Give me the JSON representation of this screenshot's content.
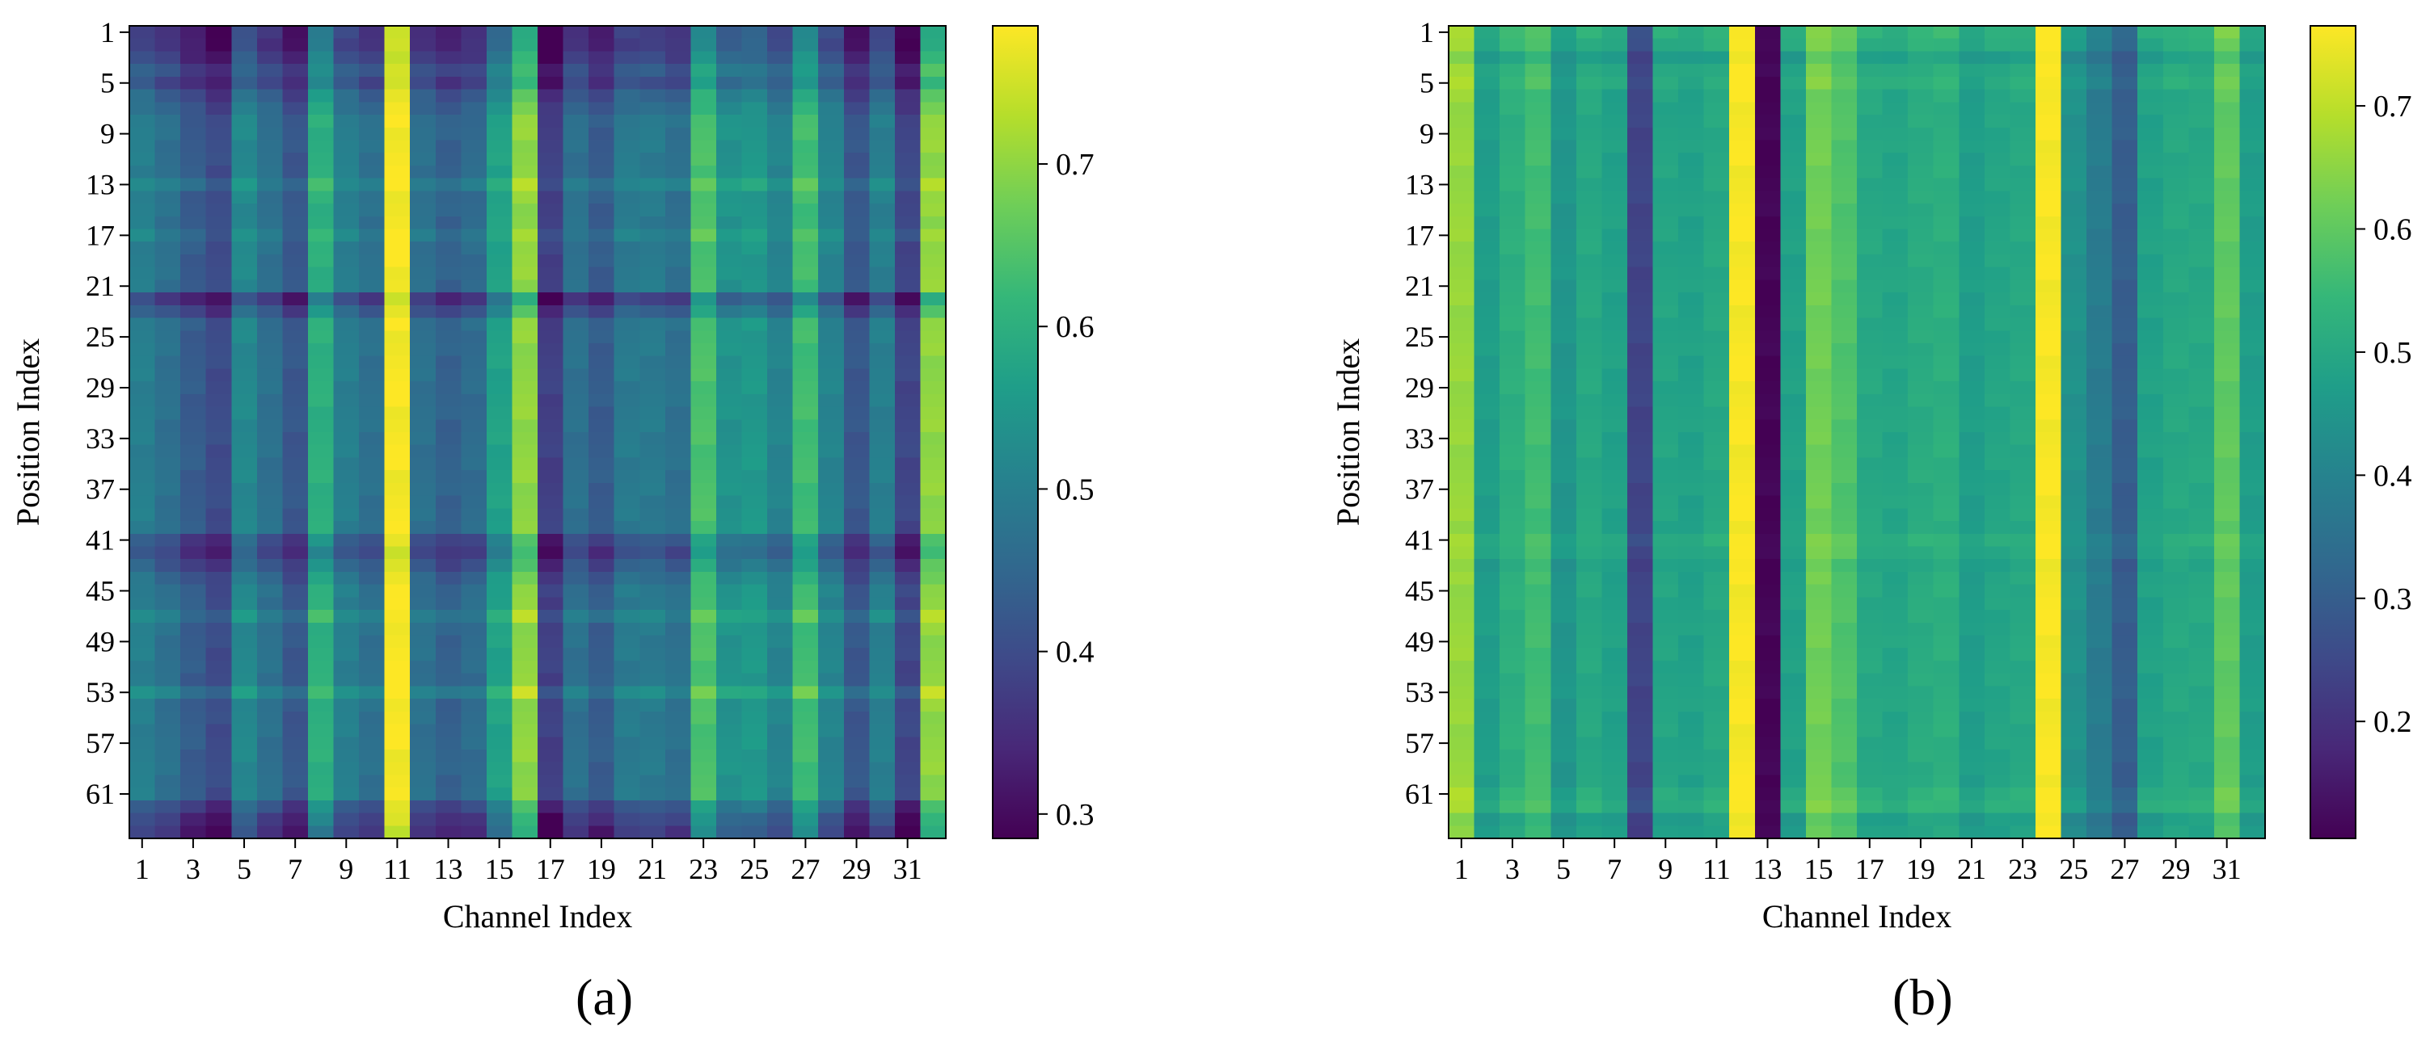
{
  "figure_labels": [
    "(a)",
    "(b)"
  ],
  "colormap": {
    "name": "viridis",
    "stops": [
      "#440154",
      "#482878",
      "#3e4a89",
      "#31688e",
      "#26828e",
      "#1f9e89",
      "#35b779",
      "#6ece58",
      "#b5de2b",
      "#fde725"
    ]
  },
  "chart_data": [
    {
      "type": "heatmap",
      "panel": "(a)",
      "title": "",
      "xlabel": "Channel Index",
      "ylabel": "Position Index",
      "x_tick_labels": [
        "1",
        "3",
        "5",
        "7",
        "9",
        "11",
        "13",
        "15",
        "17",
        "19",
        "21",
        "23",
        "25",
        "27",
        "29",
        "31"
      ],
      "y_tick_labels": [
        "1",
        "5",
        "9",
        "13",
        "17",
        "21",
        "25",
        "29",
        "33",
        "37",
        "41",
        "45",
        "49",
        "53",
        "57",
        "61"
      ],
      "n_columns": 32,
      "n_rows": 64,
      "colorbar": {
        "min": 0.285,
        "max": 0.785,
        "tick_values": [
          0.3,
          0.4,
          0.5,
          0.6,
          0.7
        ],
        "tick_labels": [
          "0.3",
          "0.4",
          "0.5",
          "0.6",
          "0.7"
        ]
      },
      "column_mean_values": [
        0.5,
        0.47,
        0.43,
        0.4,
        0.52,
        0.47,
        0.42,
        0.6,
        0.5,
        0.47,
        0.78,
        0.47,
        0.44,
        0.46,
        0.57,
        0.7,
        0.38,
        0.47,
        0.43,
        0.49,
        0.49,
        0.47,
        0.64,
        0.54,
        0.55,
        0.51,
        0.63,
        0.51,
        0.42,
        0.5,
        0.39,
        0.7
      ],
      "row_offsets": {
        "1": -0.11,
        "2": -0.11,
        "3": -0.09,
        "4": -0.06,
        "5": -0.08,
        "6": -0.04,
        "7": -0.02,
        "13": 0.03,
        "17": 0.02,
        "22": -0.1,
        "23": -0.05,
        "41": -0.06,
        "42": -0.08,
        "43": -0.05,
        "44": -0.02,
        "47": 0.03,
        "53": 0.04,
        "62": -0.06,
        "63": -0.09,
        "64": -0.11
      }
    },
    {
      "type": "heatmap",
      "panel": "(b)",
      "title": "",
      "xlabel": "Channel Index",
      "ylabel": "Position Index",
      "x_tick_labels": [
        "1",
        "3",
        "5",
        "7",
        "9",
        "11",
        "13",
        "15",
        "17",
        "19",
        "21",
        "23",
        "25",
        "27",
        "29",
        "31"
      ],
      "y_tick_labels": [
        "1",
        "5",
        "9",
        "13",
        "17",
        "21",
        "25",
        "29",
        "33",
        "37",
        "41",
        "45",
        "49",
        "53",
        "57",
        "61"
      ],
      "n_columns": 32,
      "n_rows": 64,
      "colorbar": {
        "min": 0.105,
        "max": 0.765,
        "tick_values": [
          0.2,
          0.3,
          0.4,
          0.5,
          0.6,
          0.7
        ],
        "tick_labels": [
          "0.2",
          "0.3",
          "0.4",
          "0.5",
          "0.6",
          "0.7"
        ]
      },
      "column_mean_values": [
        0.66,
        0.47,
        0.52,
        0.56,
        0.45,
        0.5,
        0.48,
        0.24,
        0.49,
        0.48,
        0.5,
        0.76,
        0.11,
        0.48,
        0.62,
        0.58,
        0.5,
        0.49,
        0.51,
        0.52,
        0.47,
        0.49,
        0.5,
        0.76,
        0.44,
        0.38,
        0.3,
        0.48,
        0.5,
        0.5,
        0.6,
        0.47
      ],
      "row_offsets": {
        "1": 0.03,
        "2": 0.02,
        "3": -0.02,
        "4": 0.01,
        "5": 0.02,
        "41": 0.02,
        "42": 0.01,
        "43": -0.01,
        "61": 0.02,
        "62": 0.03,
        "63": -0.02,
        "64": -0.01
      }
    }
  ]
}
